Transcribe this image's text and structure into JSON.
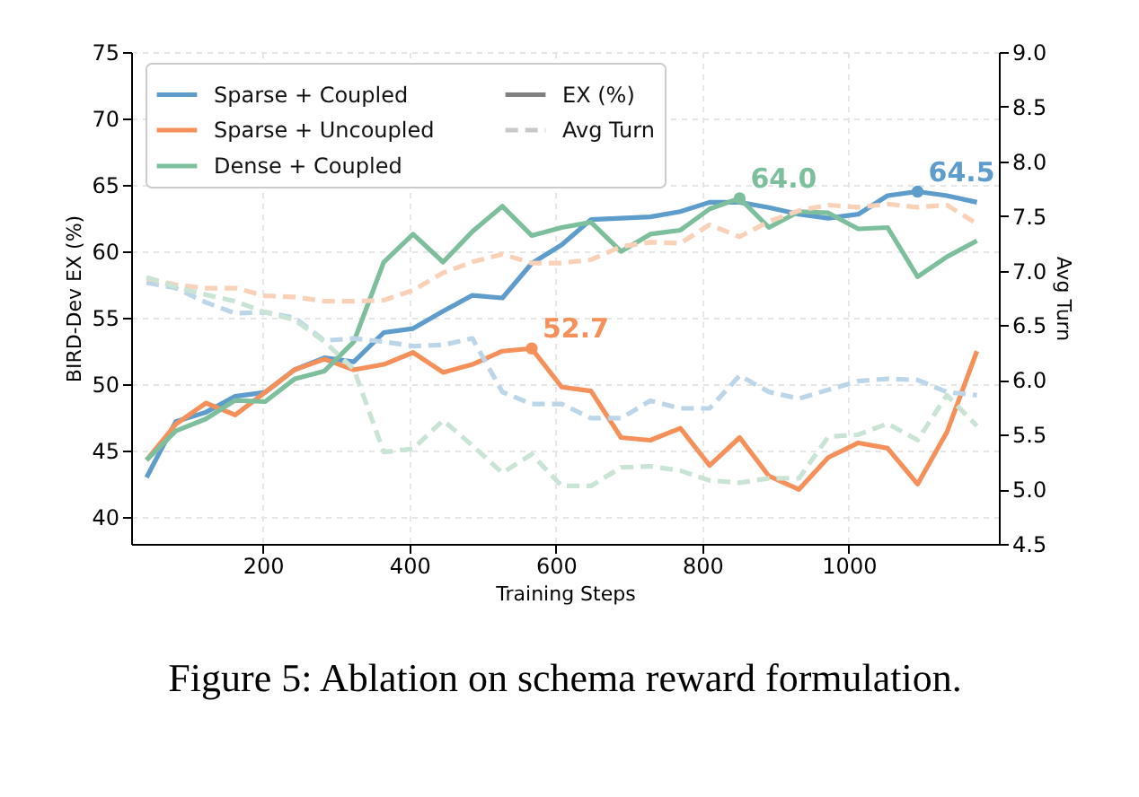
{
  "chart_data": {
    "type": "line",
    "xlabel": "Training Steps",
    "ylabel": "BIRD-Dev EX (%)",
    "y2label": "Avg Turn",
    "x": [
      41,
      81,
      122,
      162,
      203,
      243,
      284,
      324,
      365,
      405,
      446,
      486,
      527,
      567,
      608,
      648,
      689,
      729,
      770,
      810,
      851,
      891,
      932,
      972,
      1013,
      1053,
      1094,
      1134,
      1175
    ],
    "series": [
      {
        "name": "Sparse + Coupled",
        "color": "#5e9ccc",
        "line_style": "solid",
        "values": [
          43.0,
          47.2,
          47.9,
          49.1,
          49.4,
          51.1,
          52.0,
          51.7,
          53.9,
          54.2,
          55.5,
          56.7,
          56.5,
          59.1,
          60.5,
          62.4,
          62.5,
          62.6,
          63.0,
          63.7,
          63.7,
          63.3,
          62.8,
          62.5,
          62.8,
          64.2,
          64.5,
          64.2,
          63.7
        ]
      },
      {
        "name": "Sparse + Uncoupled",
        "color": "#f5905a",
        "line_style": "solid",
        "values": [
          44.3,
          47.0,
          48.6,
          47.7,
          49.4,
          51.1,
          51.9,
          51.1,
          51.5,
          52.4,
          50.9,
          51.5,
          52.5,
          52.7,
          49.8,
          49.5,
          46.0,
          45.8,
          46.7,
          43.9,
          46.0,
          43.1,
          42.1,
          44.5,
          45.6,
          45.2,
          42.5,
          46.4,
          52.5
        ]
      },
      {
        "name": "Dense + Coupled",
        "color": "#7dbf9c",
        "line_style": "solid",
        "values": [
          44.3,
          46.5,
          47.4,
          48.8,
          48.7,
          50.4,
          51.0,
          53.2,
          59.2,
          61.3,
          59.2,
          61.5,
          63.4,
          61.2,
          61.8,
          62.2,
          60.0,
          61.3,
          61.6,
          63.2,
          64.0,
          61.8,
          63.0,
          62.9,
          61.7,
          61.8,
          58.1,
          59.6,
          60.8
        ]
      },
      {
        "name": "EX (%)",
        "color": "#808080",
        "line_style": "solid",
        "values": [
          null,
          null,
          null,
          null,
          null,
          null,
          null,
          null,
          null,
          null,
          null,
          null,
          null,
          null,
          null,
          null,
          null,
          null,
          null,
          null,
          null,
          null,
          null,
          null,
          null,
          null,
          null,
          null,
          null
        ]
      },
      {
        "name": "Avg Turn",
        "color": "#c8c8c8",
        "line_style": "dashed",
        "values": [
          null,
          null,
          null,
          null,
          null,
          null,
          null,
          null,
          null,
          null,
          null,
          null,
          null,
          null,
          null,
          null,
          null,
          null,
          null,
          null,
          null,
          null,
          null,
          null,
          null,
          null,
          null,
          null,
          null
        ]
      },
      {
        "color": "#bcd5e8",
        "line_style": "dashed",
        "axis": "y2",
        "values": [
          6.89,
          6.84,
          6.71,
          6.61,
          6.62,
          6.57,
          6.36,
          6.38,
          6.35,
          6.31,
          6.32,
          6.38,
          5.89,
          5.78,
          5.78,
          5.65,
          5.65,
          5.81,
          5.74,
          5.74,
          6.04,
          5.89,
          5.83,
          5.91,
          5.99,
          6.01,
          6.0,
          5.89,
          5.86
        ]
      },
      {
        "color": "#f9d0b8",
        "line_style": "dashed",
        "axis": "y2",
        "values": [
          6.93,
          6.87,
          6.84,
          6.84,
          6.77,
          6.76,
          6.72,
          6.72,
          6.73,
          6.82,
          6.98,
          7.08,
          7.15,
          7.07,
          7.07,
          7.1,
          7.22,
          7.26,
          7.25,
          7.42,
          7.31,
          7.45,
          7.55,
          7.6,
          7.58,
          7.61,
          7.58,
          7.6,
          7.43
        ]
      },
      {
        "color": "#c9e3d5",
        "line_style": "dashed",
        "axis": "y2",
        "values": [
          6.94,
          6.85,
          6.78,
          6.72,
          6.62,
          6.55,
          6.35,
          6.1,
          5.34,
          5.37,
          5.63,
          5.4,
          5.15,
          5.32,
          5.03,
          5.03,
          5.2,
          5.21,
          5.17,
          5.08,
          5.06,
          5.1,
          5.1,
          5.48,
          5.5,
          5.6,
          5.45,
          5.86,
          5.58
        ]
      }
    ],
    "xlim": [
      20,
      1205
    ],
    "xticks": [
      200,
      400,
      600,
      800,
      1000
    ],
    "ylim": [
      38,
      75
    ],
    "yticks": [
      40,
      45,
      50,
      55,
      60,
      65,
      70,
      75
    ],
    "y2lim": [
      4.5,
      9.0
    ],
    "y2ticks": [
      4.5,
      {
        "value": 5,
        "label": "5.0"
      },
      5.5,
      {
        "value": 6,
        "label": "6.0"
      },
      6.5,
      {
        "value": 7,
        "label": "7.0"
      },
      7.5,
      {
        "value": 8,
        "label": "8.0"
      },
      8.5,
      {
        "value": 9,
        "label": "9.0"
      }
    ],
    "grid": true,
    "legend": "top left",
    "annotations": [
      {
        "text": "52.7",
        "x": 567,
        "y": 52.7
      },
      {
        "text": "64.0",
        "x": 851,
        "y": 64.0
      },
      {
        "text": "64.5",
        "x": 1094,
        "y": 64.5
      },
      "Figure 5: Ablation on schema reward formulation."
    ]
  }
}
